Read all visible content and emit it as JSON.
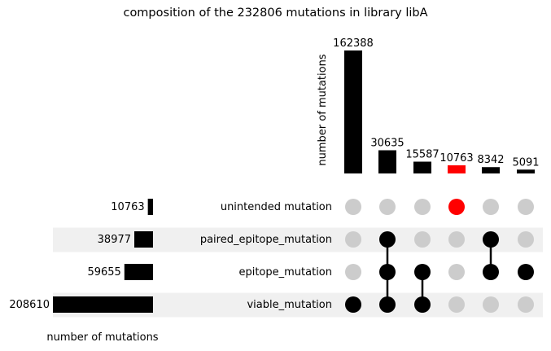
{
  "chart_data": {
    "type": "upset",
    "title": "composition of the 232806 mutations in library libA",
    "intersection_axis_label": "number of mutations",
    "set_axis_label": "number of mutations",
    "sets": [
      {
        "name": "unintended mutation",
        "size": 10763
      },
      {
        "name": "paired_epitope_mutation",
        "size": 38977
      },
      {
        "name": "epitope_mutation",
        "size": 59655
      },
      {
        "name": "viable_mutation",
        "size": 208610
      }
    ],
    "intersections": [
      {
        "members": [
          "viable_mutation"
        ],
        "value": 162388,
        "highlight": false
      },
      {
        "members": [
          "paired_epitope_mutation",
          "epitope_mutation",
          "viable_mutation"
        ],
        "value": 30635,
        "highlight": false
      },
      {
        "members": [
          "epitope_mutation",
          "viable_mutation"
        ],
        "value": 15587,
        "highlight": false
      },
      {
        "members": [
          "unintended mutation"
        ],
        "value": 10763,
        "highlight": true
      },
      {
        "members": [
          "paired_epitope_mutation",
          "epitope_mutation"
        ],
        "value": 8342,
        "highlight": false
      },
      {
        "members": [
          "epitope_mutation"
        ],
        "value": 5091,
        "highlight": false
      }
    ]
  },
  "colors": {
    "bar": "#000000",
    "highlight": "#ff0000",
    "inactive_dot": "#cccccc",
    "stripe": "#f0f0f0"
  }
}
